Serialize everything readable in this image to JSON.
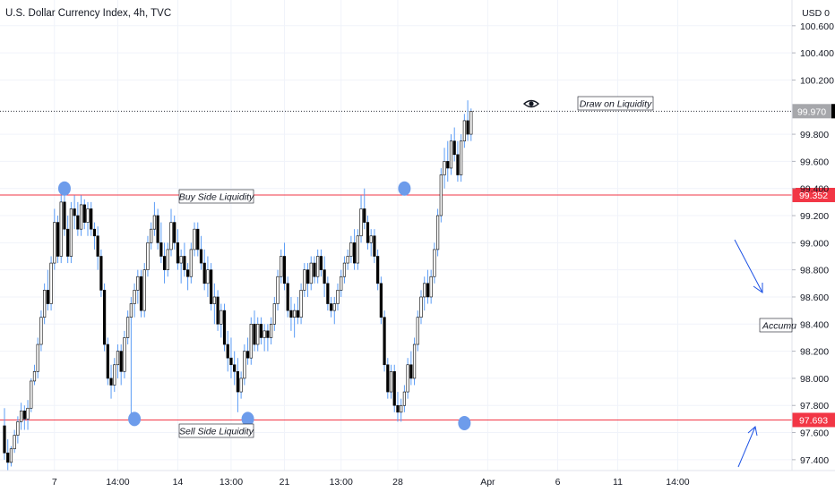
{
  "header": {
    "title": "U.S. Dollar Currency Index, 4h, TVC",
    "currency": "USD 0"
  },
  "annotations": {
    "draw_on_liquidity": "Draw on Liquidity",
    "buy_side": "Buy Side Liquidity",
    "sell_side": "Sell Side Liquidity",
    "accumulation": "Accumu"
  },
  "colors": {
    "up": "#ffffff",
    "down": "#000000",
    "wick": "#5b9cf6",
    "level": "#f23645",
    "marker": "#6d9ceb",
    "arrow": "#1e53e5"
  },
  "chart_data": {
    "type": "candlestick",
    "title": "U.S. Dollar Currency Index, 4h, TVC",
    "xlabel": "",
    "ylabel": "",
    "ylim": [
      97.32,
      100.79
    ],
    "y_ticks": [
      "100.600",
      "100.400",
      "100.200",
      "99.800",
      "99.600",
      "99.400",
      "99.200",
      "99.000",
      "98.800",
      "98.600",
      "98.400",
      "98.200",
      "98.000",
      "97.800",
      "97.600",
      "97.400"
    ],
    "y_tick_values": [
      100.6,
      100.4,
      100.2,
      99.8,
      99.6,
      99.4,
      99.2,
      99.0,
      98.8,
      98.6,
      98.4,
      98.2,
      98.0,
      97.8,
      97.6,
      97.4
    ],
    "x_ticks": [
      "7",
      "14:00",
      "14",
      "13:00",
      "21",
      "13:00",
      "28",
      "Apr",
      "6",
      "11",
      "14:00"
    ],
    "x_tick_index": [
      15,
      34,
      52,
      68,
      84,
      101,
      118,
      145,
      166,
      184,
      202
    ],
    "levels": [
      {
        "name": "Buy Side Liquidity",
        "value": 99.352,
        "label": "99.352"
      },
      {
        "name": "Sell Side Liquidity",
        "value": 97.693,
        "label": "97.693"
      }
    ],
    "last_price": {
      "value": 99.97,
      "label": "99.970"
    },
    "swing_markers": [
      {
        "index": 18,
        "price": 99.4
      },
      {
        "index": 39,
        "price": 97.7
      },
      {
        "index": 73,
        "price": 97.7
      },
      {
        "index": 120,
        "price": 99.4
      },
      {
        "index": 138,
        "price": 97.67
      }
    ],
    "ohlc": [
      [
        97.65,
        97.78,
        97.4,
        97.45
      ],
      [
        97.45,
        97.55,
        97.32,
        97.38
      ],
      [
        97.38,
        97.5,
        97.35,
        97.48
      ],
      [
        97.48,
        97.62,
        97.45,
        97.58
      ],
      [
        97.58,
        97.72,
        97.52,
        97.68
      ],
      [
        97.68,
        97.82,
        97.62,
        97.76
      ],
      [
        97.76,
        97.8,
        97.62,
        97.7
      ],
      [
        97.7,
        97.84,
        97.62,
        97.78
      ],
      [
        97.78,
        98.0,
        97.75,
        97.98
      ],
      [
        97.98,
        98.1,
        97.95,
        98.05
      ],
      [
        98.05,
        98.3,
        98.0,
        98.25
      ],
      [
        98.25,
        98.5,
        98.2,
        98.45
      ],
      [
        98.45,
        98.7,
        98.4,
        98.65
      ],
      [
        98.65,
        98.8,
        98.5,
        98.55
      ],
      [
        98.55,
        98.9,
        98.5,
        98.85
      ],
      [
        98.85,
        99.25,
        98.8,
        99.15
      ],
      [
        99.15,
        99.2,
        98.85,
        98.9
      ],
      [
        98.9,
        99.35,
        98.85,
        99.3
      ],
      [
        99.3,
        99.38,
        99.05,
        99.1
      ],
      [
        99.1,
        99.2,
        98.85,
        98.9
      ],
      [
        98.9,
        99.3,
        98.85,
        99.25
      ],
      [
        99.25,
        99.35,
        99.1,
        99.2
      ],
      [
        99.2,
        99.3,
        99.05,
        99.1
      ],
      [
        99.1,
        99.35,
        99.05,
        99.28
      ],
      [
        99.28,
        99.32,
        99.1,
        99.15
      ],
      [
        99.15,
        99.3,
        99.05,
        99.25
      ],
      [
        99.25,
        99.3,
        99.05,
        99.1
      ],
      [
        99.1,
        99.15,
        98.95,
        99.05
      ],
      [
        99.05,
        99.12,
        98.8,
        98.9
      ],
      [
        98.9,
        98.95,
        98.6,
        98.65
      ],
      [
        98.65,
        98.7,
        98.2,
        98.25
      ],
      [
        98.25,
        98.3,
        97.95,
        98.0
      ],
      [
        98.0,
        98.1,
        97.85,
        97.95
      ],
      [
        97.95,
        98.15,
        97.9,
        98.1
      ],
      [
        98.1,
        98.25,
        98.0,
        98.2
      ],
      [
        98.2,
        98.25,
        97.95,
        98.05
      ],
      [
        98.05,
        98.35,
        98.0,
        98.3
      ],
      [
        98.3,
        98.5,
        98.25,
        98.45
      ],
      [
        98.45,
        98.6,
        97.7,
        98.55
      ],
      [
        98.55,
        98.7,
        98.45,
        98.65
      ],
      [
        98.65,
        98.8,
        98.55,
        98.75
      ],
      [
        98.75,
        98.8,
        98.45,
        98.5
      ],
      [
        98.5,
        98.85,
        98.45,
        98.8
      ],
      [
        98.8,
        99.05,
        98.75,
        99.0
      ],
      [
        99.0,
        99.15,
        98.95,
        99.1
      ],
      [
        99.1,
        99.3,
        99.05,
        99.2
      ],
      [
        99.2,
        99.25,
        98.95,
        99.0
      ],
      [
        99.0,
        99.15,
        98.85,
        98.9
      ],
      [
        98.9,
        99.0,
        98.7,
        98.8
      ],
      [
        98.8,
        99.0,
        98.75,
        98.95
      ],
      [
        98.95,
        99.25,
        98.9,
        99.15
      ],
      [
        99.15,
        99.2,
        98.95,
        99.0
      ],
      [
        99.0,
        99.1,
        98.8,
        98.85
      ],
      [
        98.85,
        98.95,
        98.7,
        98.9
      ],
      [
        98.9,
        99.0,
        98.75,
        98.8
      ],
      [
        98.8,
        98.85,
        98.65,
        98.75
      ],
      [
        98.75,
        99.0,
        98.7,
        98.95
      ],
      [
        98.95,
        99.15,
        98.9,
        99.1
      ],
      [
        99.1,
        99.15,
        98.9,
        98.95
      ],
      [
        98.95,
        99.05,
        98.8,
        98.85
      ],
      [
        98.85,
        98.95,
        98.65,
        98.7
      ],
      [
        98.7,
        98.9,
        98.6,
        98.8
      ],
      [
        98.8,
        98.85,
        98.5,
        98.55
      ],
      [
        98.55,
        98.7,
        98.4,
        98.6
      ],
      [
        98.6,
        98.65,
        98.35,
        98.4
      ],
      [
        98.4,
        98.55,
        98.3,
        98.5
      ],
      [
        98.5,
        98.55,
        98.2,
        98.25
      ],
      [
        98.25,
        98.35,
        98.05,
        98.15
      ],
      [
        98.15,
        98.3,
        98.0,
        98.1
      ],
      [
        98.1,
        98.2,
        97.95,
        98.05
      ],
      [
        98.05,
        98.15,
        97.75,
        97.9
      ],
      [
        97.9,
        98.05,
        97.85,
        98.0
      ],
      [
        98.0,
        98.25,
        97.95,
        98.2
      ],
      [
        98.2,
        98.3,
        98.1,
        98.15
      ],
      [
        98.15,
        98.45,
        98.1,
        98.4
      ],
      [
        98.4,
        98.5,
        98.2,
        98.25
      ],
      [
        98.25,
        98.45,
        98.2,
        98.4
      ],
      [
        98.4,
        98.45,
        98.25,
        98.3
      ],
      [
        98.3,
        98.4,
        98.2,
        98.35
      ],
      [
        98.35,
        98.4,
        98.2,
        98.3
      ],
      [
        98.3,
        98.45,
        98.25,
        98.4
      ],
      [
        98.4,
        98.6,
        98.35,
        98.55
      ],
      [
        98.55,
        98.8,
        98.5,
        98.75
      ],
      [
        98.75,
        98.95,
        98.7,
        98.9
      ],
      [
        98.9,
        99.0,
        98.65,
        98.7
      ],
      [
        98.7,
        98.75,
        98.45,
        98.5
      ],
      [
        98.5,
        98.6,
        98.35,
        98.45
      ],
      [
        98.45,
        98.55,
        98.3,
        98.5
      ],
      [
        98.5,
        98.6,
        98.4,
        98.45
      ],
      [
        98.45,
        98.7,
        98.4,
        98.65
      ],
      [
        98.65,
        98.85,
        98.6,
        98.8
      ],
      [
        98.8,
        98.85,
        98.6,
        98.7
      ],
      [
        98.7,
        98.9,
        98.65,
        98.85
      ],
      [
        98.85,
        98.9,
        98.7,
        98.75
      ],
      [
        98.75,
        98.95,
        98.7,
        98.9
      ],
      [
        98.9,
        98.95,
        98.75,
        98.8
      ],
      [
        98.8,
        98.9,
        98.6,
        98.7
      ],
      [
        98.7,
        98.75,
        98.5,
        98.55
      ],
      [
        98.55,
        98.6,
        98.45,
        98.5
      ],
      [
        98.5,
        98.6,
        98.4,
        98.55
      ],
      [
        98.55,
        98.7,
        98.5,
        98.65
      ],
      [
        98.65,
        98.8,
        98.6,
        98.75
      ],
      [
        98.75,
        98.9,
        98.7,
        98.85
      ],
      [
        98.85,
        98.95,
        98.8,
        98.9
      ],
      [
        98.9,
        99.05,
        98.85,
        99.0
      ],
      [
        99.0,
        99.1,
        98.8,
        98.85
      ],
      [
        98.85,
        99.1,
        98.8,
        99.05
      ],
      [
        99.05,
        99.35,
        99.0,
        99.25
      ],
      [
        99.25,
        99.4,
        99.1,
        99.15
      ],
      [
        99.15,
        99.2,
        98.95,
        99.0
      ],
      [
        99.0,
        99.1,
        98.9,
        99.05
      ],
      [
        99.05,
        99.1,
        98.85,
        98.9
      ],
      [
        98.9,
        98.95,
        98.65,
        98.7
      ],
      [
        98.7,
        98.75,
        98.4,
        98.45
      ],
      [
        98.45,
        98.5,
        98.05,
        98.1
      ],
      [
        98.1,
        98.15,
        97.85,
        97.9
      ],
      [
        97.9,
        98.1,
        97.85,
        98.05
      ],
      [
        98.05,
        98.1,
        97.75,
        97.8
      ],
      [
        97.8,
        97.9,
        97.68,
        97.75
      ],
      [
        97.75,
        97.85,
        97.68,
        97.8
      ],
      [
        97.8,
        97.95,
        97.75,
        97.9
      ],
      [
        97.9,
        98.15,
        97.85,
        98.1
      ],
      [
        98.1,
        98.2,
        97.95,
        98.0
      ],
      [
        98.0,
        98.3,
        97.95,
        98.25
      ],
      [
        98.25,
        98.5,
        98.2,
        98.45
      ],
      [
        98.45,
        98.65,
        98.4,
        98.6
      ],
      [
        98.6,
        98.75,
        98.5,
        98.7
      ],
      [
        98.7,
        98.8,
        98.55,
        98.6
      ],
      [
        98.6,
        98.8,
        98.55,
        98.75
      ],
      [
        98.75,
        99.0,
        98.7,
        98.95
      ],
      [
        98.95,
        99.25,
        98.9,
        99.2
      ],
      [
        99.2,
        99.55,
        99.15,
        99.5
      ],
      [
        99.5,
        99.7,
        99.4,
        99.6
      ],
      [
        99.6,
        99.75,
        99.45,
        99.55
      ],
      [
        99.55,
        99.8,
        99.5,
        99.75
      ],
      [
        99.75,
        99.85,
        99.6,
        99.65
      ],
      [
        99.65,
        99.75,
        99.45,
        99.5
      ],
      [
        99.5,
        99.8,
        99.45,
        99.75
      ],
      [
        99.75,
        99.95,
        99.7,
        99.9
      ],
      [
        99.9,
        100.05,
        99.75,
        99.8
      ],
      [
        99.8,
        99.99,
        99.75,
        99.97
      ]
    ]
  }
}
